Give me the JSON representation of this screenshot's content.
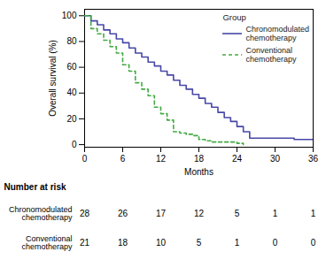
{
  "chart_data": {
    "type": "step",
    "xlabel": "Months",
    "ylabel": "Overall survival (%)",
    "xlim": [
      0,
      36
    ],
    "ylim": [
      -2,
      105
    ],
    "xticks": [
      0,
      6,
      12,
      18,
      24,
      30,
      36
    ],
    "yticks": [
      0,
      20,
      40,
      60,
      80,
      100
    ],
    "grid": false,
    "legend": "upper right",
    "legend_title": "Group",
    "series": [
      {
        "name": "Chronomodulated\nchemotherapy",
        "color": "#4848a8",
        "line_style": "solid",
        "x": [
          0,
          1,
          2,
          3,
          4,
          5,
          6,
          7,
          8,
          9,
          10,
          11,
          12,
          13,
          14,
          15,
          16,
          17,
          18,
          19,
          20,
          21,
          22,
          23,
          24,
          25,
          26,
          27,
          28,
          29,
          30,
          33,
          36
        ],
        "values": [
          100,
          96,
          93,
          89,
          86,
          82,
          79,
          75,
          71,
          68,
          64,
          61,
          57,
          54,
          50,
          46,
          43,
          39,
          36,
          32,
          29,
          25,
          21,
          18,
          14,
          10,
          5,
          5,
          5,
          5,
          5,
          4,
          4
        ]
      },
      {
        "name": "Conventional\nchemotherapy",
        "color": "#44aa44",
        "line_style": "dashed",
        "x": [
          0,
          1,
          2,
          3,
          4,
          5,
          6,
          7,
          8,
          9,
          10,
          11,
          12,
          13,
          14,
          15,
          16,
          17,
          18,
          19,
          20,
          21,
          22,
          23,
          24,
          25
        ],
        "values": [
          100,
          90,
          86,
          81,
          76,
          71,
          62,
          57,
          48,
          43,
          38,
          29,
          24,
          19,
          10,
          9,
          8,
          7,
          4,
          3,
          2,
          2,
          2,
          2,
          1,
          0
        ]
      }
    ],
    "risk_table": {
      "title": "Number at risk",
      "x": [
        0,
        6,
        12,
        18,
        24,
        30,
        36
      ],
      "rows": [
        {
          "name": "Chronomodulated\nchemotherapy",
          "values": [
            28,
            26,
            17,
            12,
            5,
            1,
            1
          ]
        },
        {
          "name": "Conventional\nchemotherapy",
          "values": [
            21,
            18,
            10,
            5,
            1,
            0,
            0
          ]
        }
      ]
    }
  }
}
